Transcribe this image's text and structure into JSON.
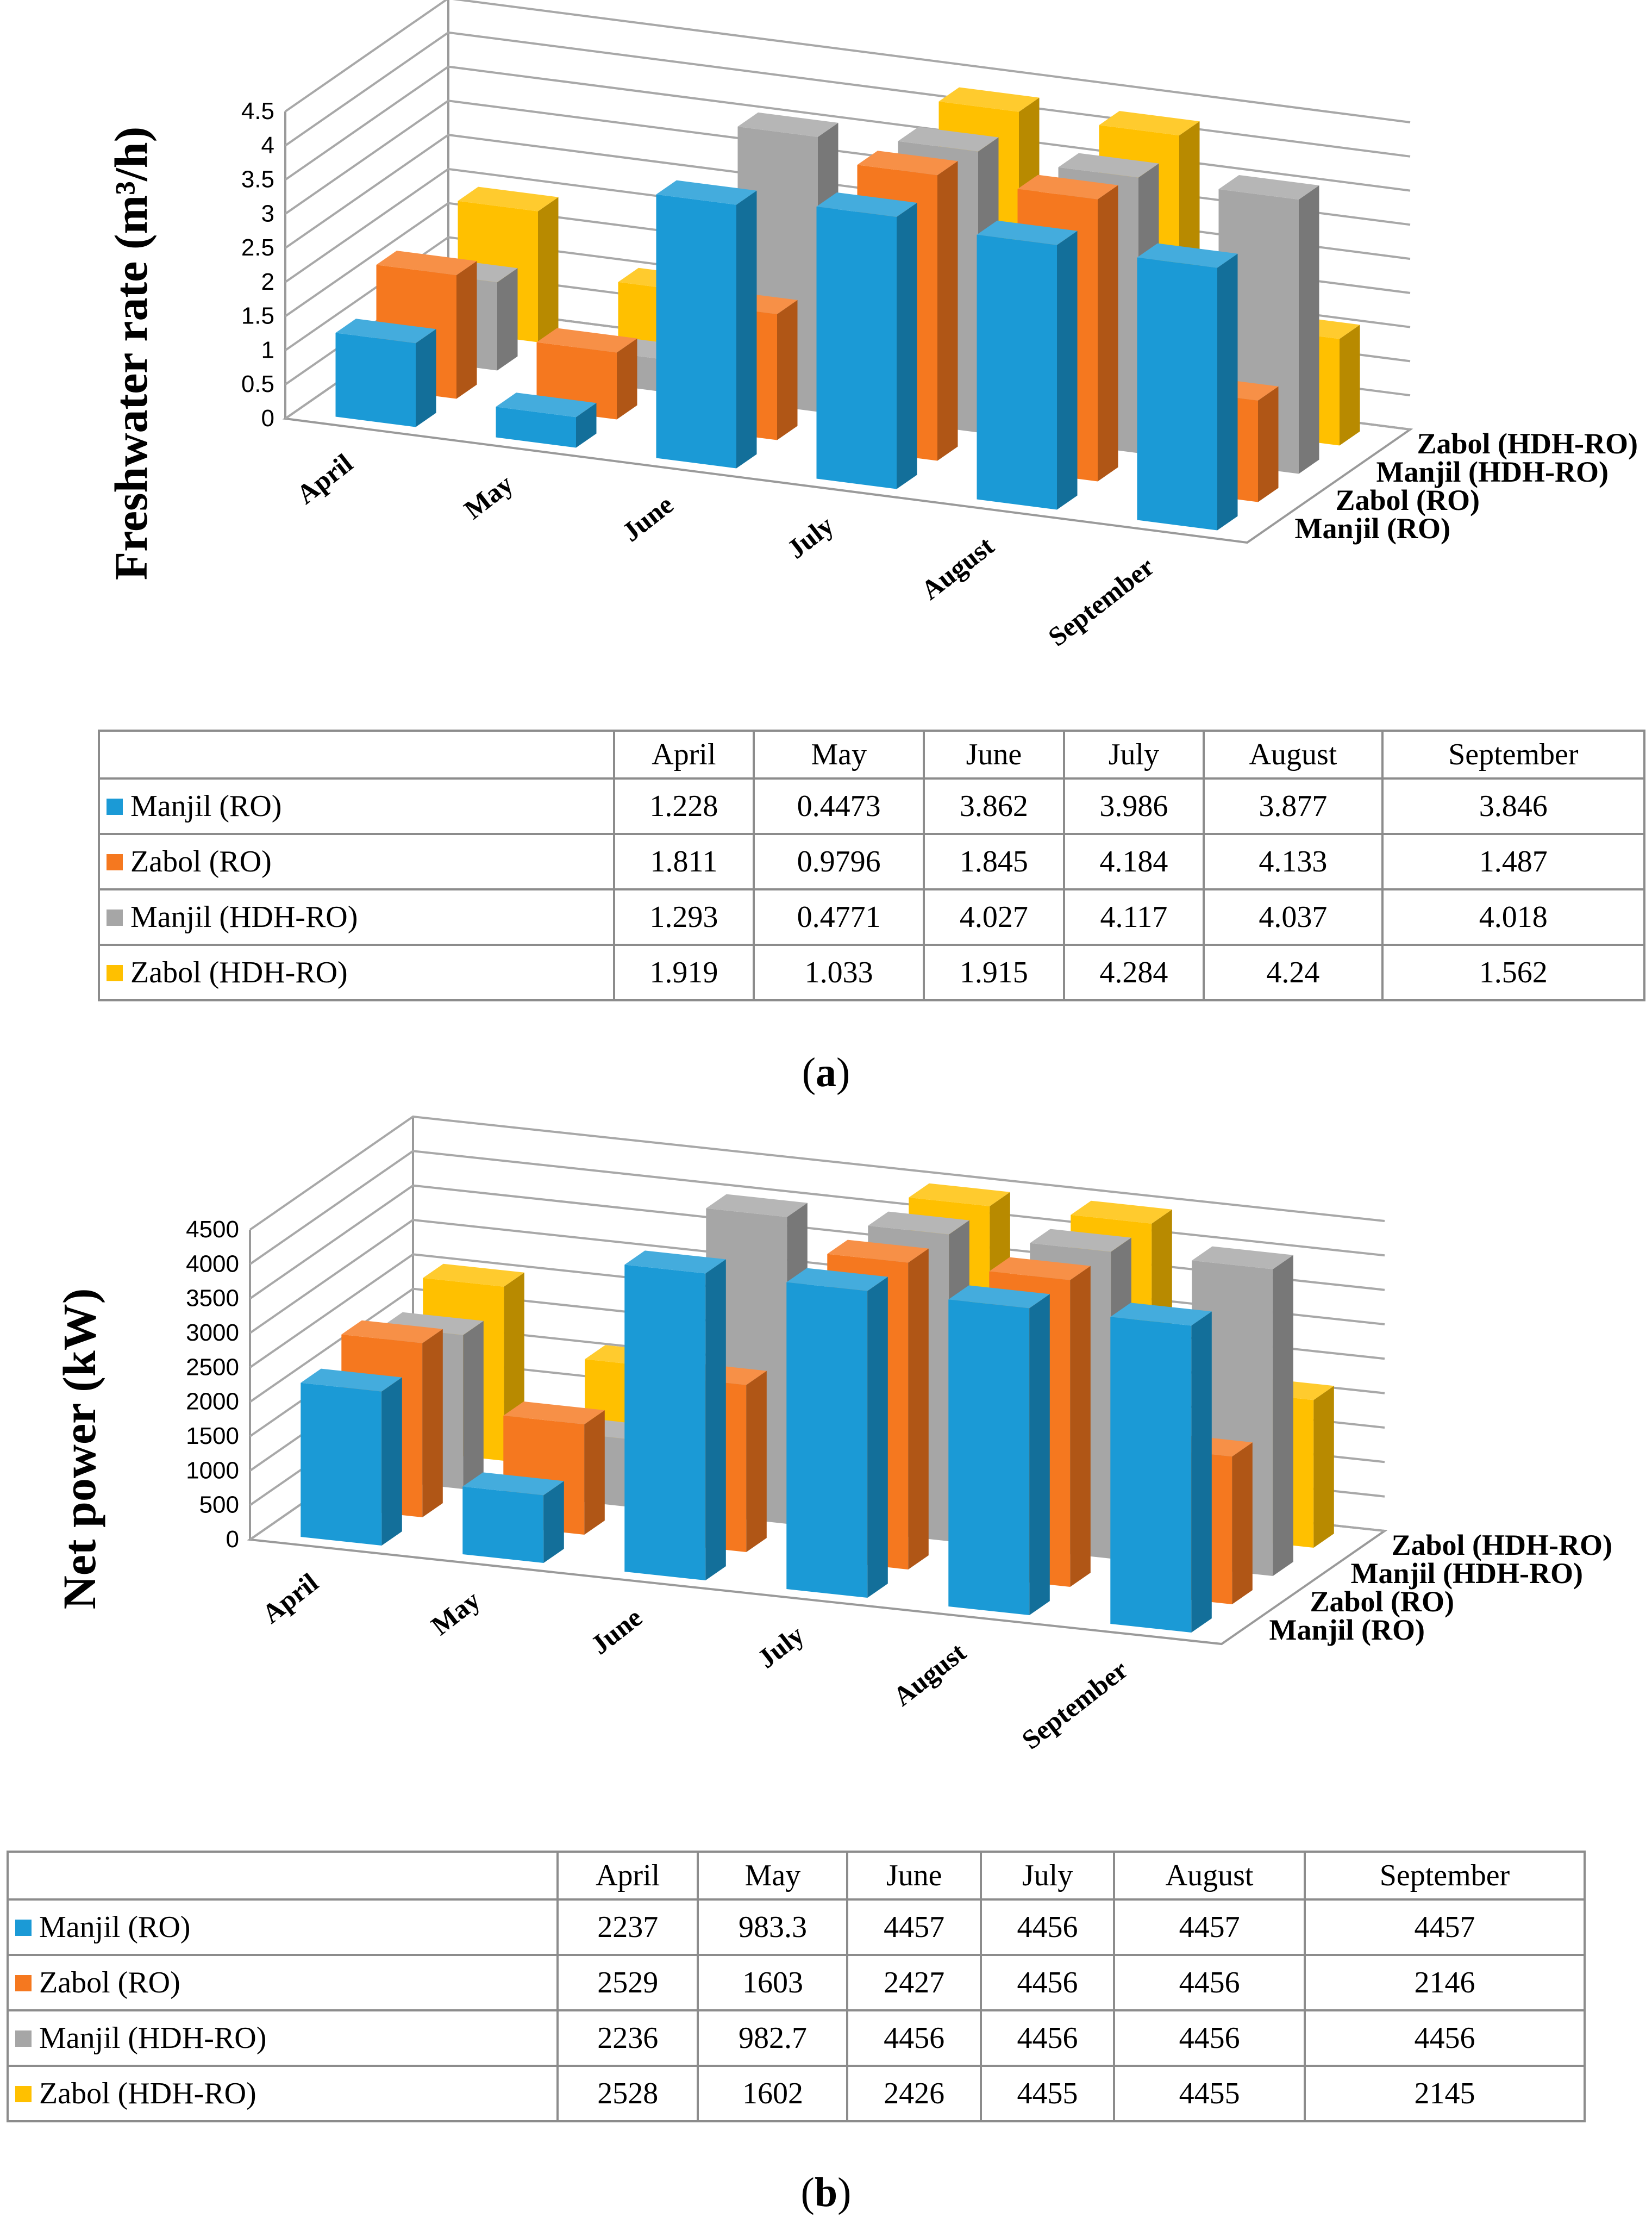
{
  "charts": [
    {
      "ylabel": "Freshwater rate (m³/h)",
      "caption_letter": "a",
      "y_ticks": [
        "0",
        "0.5",
        "1",
        "1.5",
        "2",
        "2.5",
        "3",
        "3.5",
        "4",
        "4.5"
      ],
      "table": {
        "headers": [
          "April",
          "May",
          "June",
          "July",
          "August",
          "September"
        ],
        "rows": [
          {
            "name": "Manjil (RO)",
            "cells": [
              "1.228",
              "0.4473",
              "3.862",
              "3.986",
              "3.877",
              "3.846"
            ]
          },
          {
            "name": "Zabol (RO)",
            "cells": [
              "1.811",
              "0.9796",
              "1.845",
              "4.184",
              "4.133",
              "1.487"
            ]
          },
          {
            "name": "Manjil (HDH-RO)",
            "cells": [
              "1.293",
              "0.4771",
              "4.027",
              "4.117",
              "4.037",
              "4.018"
            ]
          },
          {
            "name": "Zabol (HDH-RO)",
            "cells": [
              "1.919",
              "1.033",
              "1.915",
              "4.284",
              "4.24",
              "1.562"
            ]
          }
        ]
      }
    },
    {
      "ylabel": "Net power (kW)",
      "caption_letter": "b",
      "y_ticks": [
        "0",
        "500",
        "1000",
        "1500",
        "2000",
        "2500",
        "3000",
        "3500",
        "4000",
        "4500"
      ],
      "table": {
        "headers": [
          "April",
          "May",
          "June",
          "July",
          "August",
          "September"
        ],
        "rows": [
          {
            "name": "Manjil (RO)",
            "cells": [
              "2237",
              "983.3",
              "4457",
              "4456",
              "4457",
              "4457"
            ]
          },
          {
            "name": "Zabol (RO)",
            "cells": [
              "2529",
              "1603",
              "2427",
              "4456",
              "4456",
              "2146"
            ]
          },
          {
            "name": "Manjil (HDH-RO)",
            "cells": [
              "2236",
              "982.7",
              "4456",
              "4456",
              "4456",
              "4456"
            ]
          },
          {
            "name": "Zabol (HDH-RO)",
            "cells": [
              "2528",
              "1602",
              "2426",
              "4455",
              "4455",
              "2145"
            ]
          }
        ]
      }
    }
  ],
  "chart_data": [
    {
      "type": "bar",
      "style": "3d-column",
      "title": "",
      "xlabel": "",
      "ylabel": "Freshwater rate (m³/h)",
      "ylim": [
        0,
        4.5
      ],
      "categories": [
        "April",
        "May",
        "June",
        "July",
        "August",
        "September"
      ],
      "series": [
        {
          "name": "Manjil (RO)",
          "color": "#1b9ad6",
          "values": [
            1.228,
            0.4473,
            3.862,
            3.986,
            3.877,
            3.846
          ]
        },
        {
          "name": "Zabol (RO)",
          "color": "#f5781f",
          "values": [
            1.811,
            0.9796,
            1.845,
            4.184,
            4.133,
            1.487
          ]
        },
        {
          "name": "Manjil (HDH-RO)",
          "color": "#a6a6a6",
          "values": [
            1.293,
            0.4771,
            4.027,
            4.117,
            4.037,
            4.018
          ]
        },
        {
          "name": "Zabol (HDH-RO)",
          "color": "#ffc000",
          "values": [
            1.919,
            1.033,
            1.915,
            4.284,
            4.24,
            1.562
          ]
        }
      ]
    },
    {
      "type": "bar",
      "style": "3d-column",
      "title": "",
      "xlabel": "",
      "ylabel": "Net power (kW)",
      "ylim": [
        0,
        4500
      ],
      "categories": [
        "April",
        "May",
        "June",
        "July",
        "August",
        "September"
      ],
      "series": [
        {
          "name": "Manjil (RO)",
          "color": "#1b9ad6",
          "values": [
            2237,
            983.3,
            4457,
            4456,
            4457,
            4457
          ]
        },
        {
          "name": "Zabol (RO)",
          "color": "#f5781f",
          "values": [
            2529,
            1603,
            2427,
            4456,
            4456,
            2146
          ]
        },
        {
          "name": "Manjil (HDH-RO)",
          "color": "#a6a6a6",
          "values": [
            2236,
            982.7,
            4456,
            4456,
            4456,
            4456
          ]
        },
        {
          "name": "Zabol (HDH-RO)",
          "color": "#ffc000",
          "values": [
            2528,
            1602,
            2426,
            4455,
            4455,
            2145
          ]
        }
      ]
    }
  ]
}
